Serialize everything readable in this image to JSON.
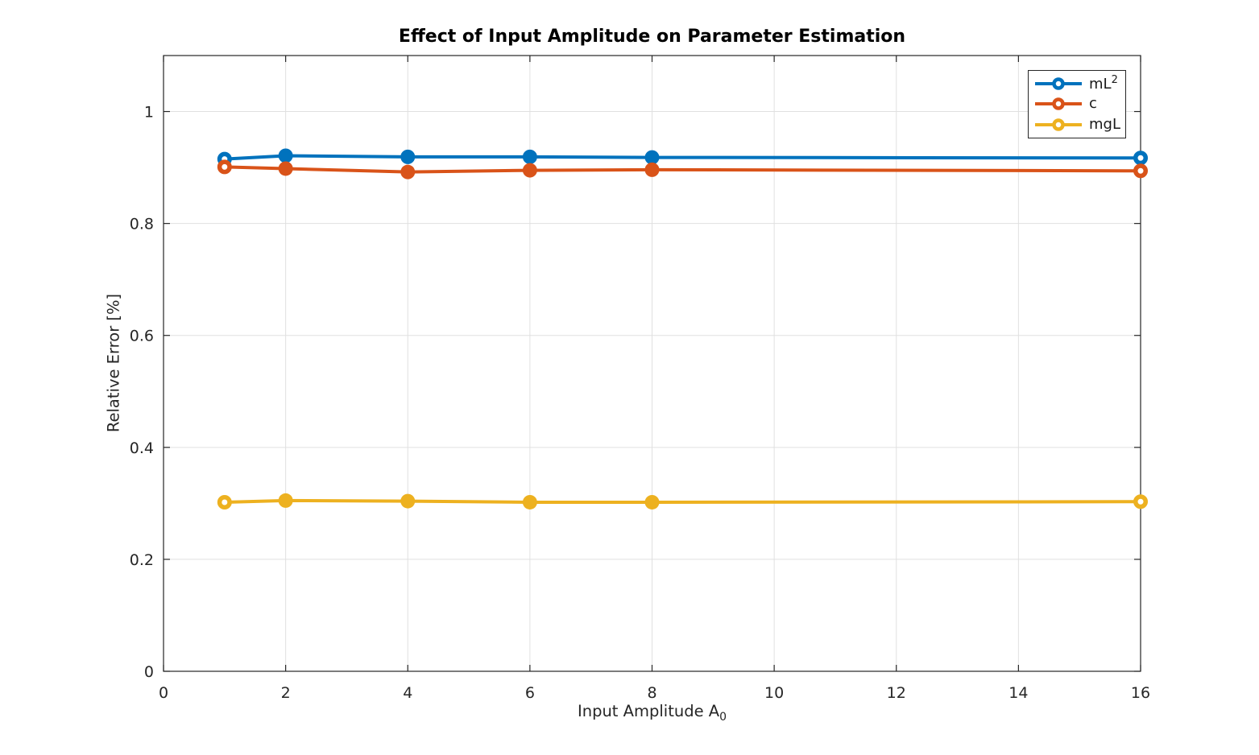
{
  "chart_data": {
    "type": "line",
    "title": "Effect of Input Amplitude on Parameter Estimation",
    "xlabel": "Input Amplitude A_0",
    "xlabel_display": {
      "text": "Input Amplitude A",
      "sub": "0"
    },
    "ylabel": "Relative Error [%]",
    "x": [
      1,
      2,
      4,
      6,
      8,
      16
    ],
    "series": [
      {
        "id": "ml2",
        "name": "mL^2",
        "label": "mL",
        "label_sup": "2",
        "color": "#0072BD",
        "values": [
          0.915,
          0.921,
          0.919,
          0.919,
          0.918,
          0.917
        ]
      },
      {
        "id": "c",
        "name": "c",
        "label": "c",
        "label_sup": "",
        "color": "#D95319",
        "values": [
          0.901,
          0.898,
          0.892,
          0.895,
          0.896,
          0.894
        ]
      },
      {
        "id": "mgl",
        "name": "mgL",
        "label": "mgL",
        "label_sup": "",
        "color": "#EDB120",
        "values": [
          0.302,
          0.305,
          0.304,
          0.302,
          0.302,
          0.303
        ]
      }
    ],
    "xlim": [
      0,
      16
    ],
    "ylim": [
      0,
      1.1
    ],
    "xticks": [
      0,
      2,
      4,
      6,
      8,
      10,
      12,
      14,
      16
    ],
    "yticks": [
      0,
      0.2,
      0.4,
      0.6,
      0.8,
      1
    ],
    "grid": true,
    "legend_position": "top-right",
    "marker_style": {
      "endpoints": "ring",
      "interior": "filled"
    },
    "colors": {
      "axis": "#262626",
      "grid": "#e0e0e0",
      "background": "#ffffff",
      "title_text": "#000000",
      "tick_text": "#262626"
    }
  }
}
